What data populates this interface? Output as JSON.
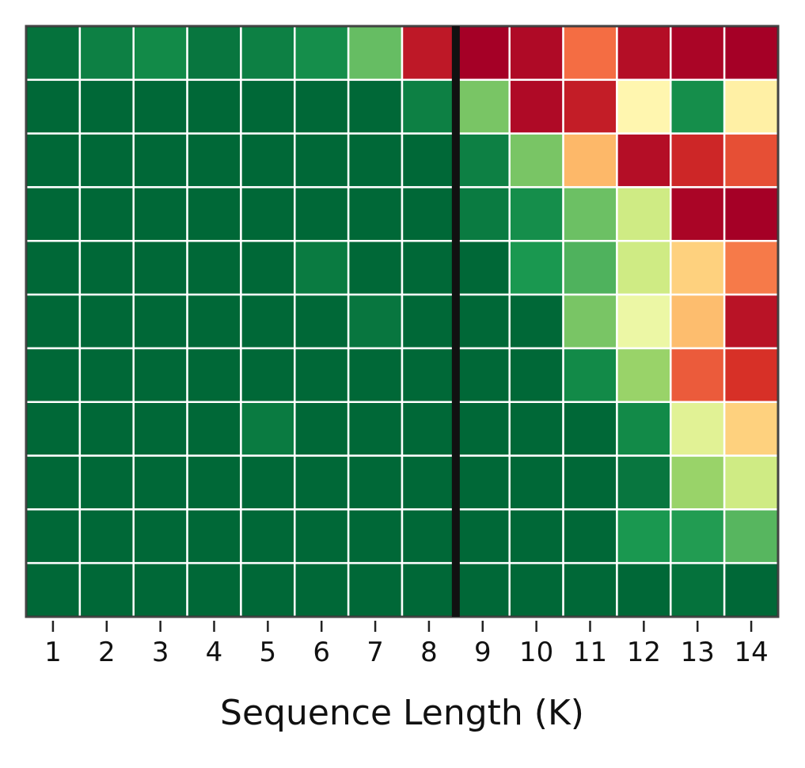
{
  "chart_data": {
    "type": "heatmap",
    "xlabel": "Sequence Length (K)",
    "categories": [
      "1",
      "2",
      "3",
      "4",
      "5",
      "6",
      "7",
      "8",
      "9",
      "10",
      "11",
      "12",
      "13",
      "14"
    ],
    "colormap": "RdYlGn",
    "zlim": [
      0,
      1
    ],
    "vline": 8.5,
    "values": [
      [
        0.98,
        0.95,
        0.93,
        0.97,
        0.95,
        0.92,
        0.8,
        0.05,
        0.0,
        0.02,
        0.2,
        0.03,
        0.01,
        0.0
      ],
      [
        1,
        1,
        1,
        1,
        1,
        1,
        1,
        0.95,
        0.77,
        0.02,
        0.06,
        0.47,
        0.92,
        0.45
      ],
      [
        1,
        1,
        1,
        1,
        1,
        1,
        1,
        1,
        0.95,
        0.77,
        0.32,
        0.03,
        0.08,
        0.15
      ],
      [
        1,
        1,
        1,
        1,
        1,
        1,
        1,
        1,
        0.96,
        0.92,
        0.79,
        0.62,
        0.01,
        0.0
      ],
      [
        1,
        1,
        1,
        1,
        1,
        0.96,
        1,
        1,
        1,
        0.9,
        0.83,
        0.62,
        0.37,
        0.22
      ],
      [
        1,
        1,
        1,
        1,
        1,
        1,
        0.97,
        1,
        1,
        1,
        0.77,
        0.55,
        0.33,
        0.04
      ],
      [
        1,
        1,
        1,
        1,
        1,
        1,
        1,
        1,
        1,
        1,
        0.93,
        0.72,
        0.17,
        0.1
      ],
      [
        1,
        1,
        1,
        1,
        0.96,
        1,
        1,
        1,
        1,
        1,
        1,
        0.93,
        0.58,
        0.37
      ],
      [
        1,
        1,
        1,
        1,
        1,
        1,
        1,
        1,
        1,
        1,
        1,
        0.97,
        0.72,
        0.62
      ],
      [
        1,
        1,
        1,
        1,
        1,
        1,
        1,
        1,
        1,
        1,
        1,
        0.9,
        0.89,
        0.82
      ],
      [
        1,
        1,
        1,
        1,
        1,
        1,
        1,
        1,
        1,
        1,
        1,
        1,
        0.98,
        1
      ]
    ]
  }
}
